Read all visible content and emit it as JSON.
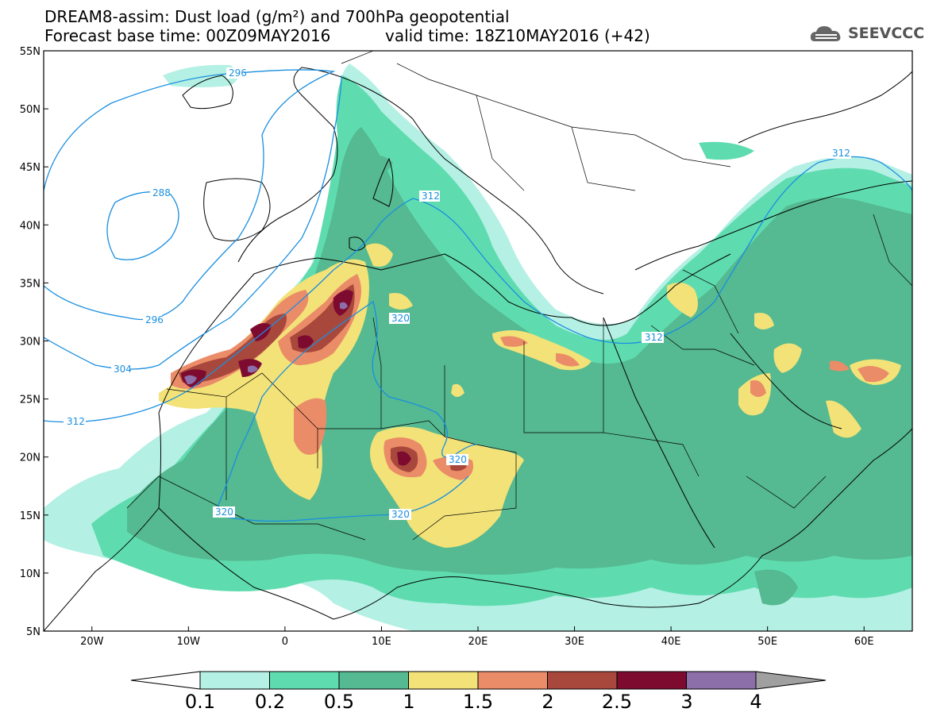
{
  "header": {
    "title_line1": "DREAM8-assim: Dust load (g/m²) and 700hPa geopotential",
    "title_line2": "Forecast base time: 00Z09MAY2016",
    "valid_time": "valid time: 18Z10MAY2016 (+42)"
  },
  "logo": {
    "text": "SEEVCCC",
    "icon": "cloud-icon"
  },
  "map": {
    "lat_ticks": [
      "55N",
      "50N",
      "45N",
      "40N",
      "35N",
      "30N",
      "25N",
      "20N",
      "15N",
      "10N",
      "5N"
    ],
    "lon_ticks": [
      "20W",
      "10W",
      "0",
      "10E",
      "20E",
      "30E",
      "40E",
      "50E",
      "60E"
    ],
    "lat_range": [
      5,
      55
    ],
    "lon_range": [
      -25,
      65
    ],
    "contour_labels": [
      "296",
      "288",
      "296",
      "304",
      "312",
      "312",
      "320",
      "312",
      "312",
      "320",
      "320",
      "320"
    ]
  },
  "colorbar": {
    "labels": [
      "0.1",
      "0.2",
      "0.5",
      "1",
      "1.5",
      "2",
      "2.5",
      "3",
      "4"
    ],
    "colors": [
      "#ffffff",
      "#b4f0e4",
      "#5fdcaf",
      "#55b991",
      "#f2e278",
      "#eb8c68",
      "#a8483c",
      "#7d0b30",
      "#8c6ea8",
      "#a0a0a0"
    ]
  }
}
